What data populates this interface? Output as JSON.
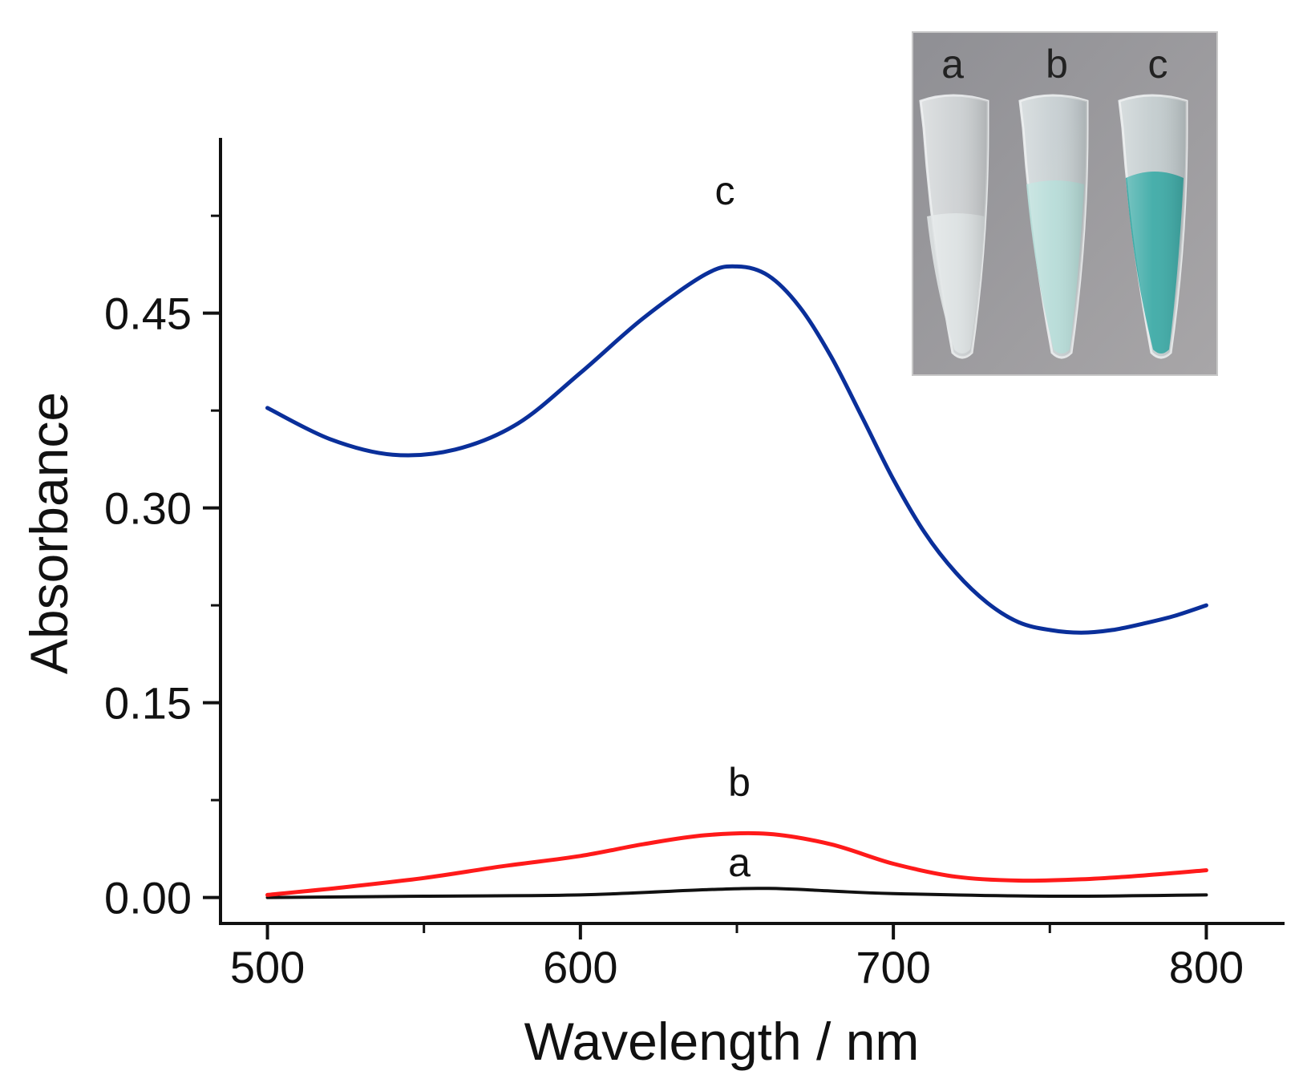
{
  "chart_data": {
    "type": "line",
    "xlabel": "Wavelength / nm",
    "ylabel": "Absorbance",
    "xlim": [
      485,
      825
    ],
    "ylim": [
      -0.02,
      0.585
    ],
    "xticks": [
      500,
      600,
      700,
      800
    ],
    "xtick_labels": [
      "500",
      "600",
      "700",
      "800"
    ],
    "yticks": [
      0.0,
      0.15,
      0.3,
      0.45
    ],
    "ytick_labels": [
      "0.00",
      "0.15",
      "0.30",
      "0.45"
    ],
    "series": [
      {
        "name": "a",
        "label": "a",
        "color": "#111111",
        "x": [
          500,
          550,
          600,
          640,
          660,
          680,
          700,
          750,
          800
        ],
        "y": [
          0.0,
          0.001,
          0.002,
          0.006,
          0.007,
          0.005,
          0.003,
          0.001,
          0.002
        ]
      },
      {
        "name": "b",
        "label": "b",
        "color": "#ff1a1a",
        "x": [
          500,
          525,
          550,
          575,
          600,
          620,
          640,
          660,
          680,
          700,
          720,
          740,
          760,
          780,
          800
        ],
        "y": [
          0.002,
          0.008,
          0.015,
          0.024,
          0.032,
          0.041,
          0.048,
          0.049,
          0.041,
          0.026,
          0.016,
          0.013,
          0.014,
          0.017,
          0.021
        ]
      },
      {
        "name": "c",
        "label": "c",
        "color": "#0a2f9a",
        "x": [
          500,
          520,
          540,
          560,
          580,
          600,
          620,
          640,
          650,
          660,
          670,
          680,
          690,
          700,
          710,
          720,
          730,
          740,
          750,
          760,
          770,
          780,
          790,
          800
        ],
        "y": [
          0.377,
          0.353,
          0.341,
          0.345,
          0.365,
          0.404,
          0.446,
          0.48,
          0.486,
          0.479,
          0.455,
          0.417,
          0.37,
          0.322,
          0.281,
          0.25,
          0.227,
          0.212,
          0.206,
          0.204,
          0.206,
          0.211,
          0.217,
          0.225
        ]
      }
    ]
  },
  "inset": {
    "tube_labels": [
      "a",
      "b",
      "c"
    ],
    "tube_colors": [
      "#dfe3e4",
      "#b6dcd8",
      "#37a9a4"
    ]
  }
}
